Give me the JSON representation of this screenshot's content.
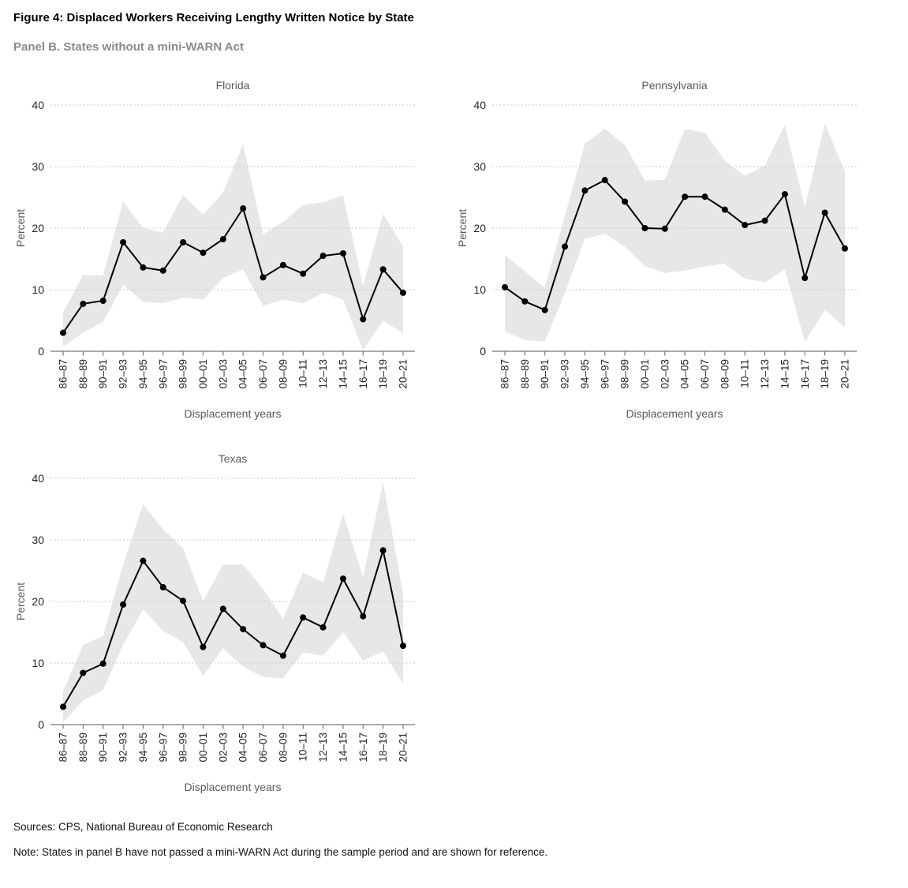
{
  "header": {
    "title": "Figure 4: Displaced Workers Receiving Lengthy Written Notice by State",
    "subtitle": "Panel B. States without a mini-WARN Act"
  },
  "footer": {
    "sources": "Sources: CPS, National Bureau of Economic Research",
    "note": "Note: States in panel B have not passed a mini-WARN Act during the sample period and are shown for reference."
  },
  "colors": {
    "line": "#000000",
    "band": "#e7e7e7",
    "grid": "#c9c9c9",
    "axis": "#777777",
    "chart_text": "#5a5a5a",
    "tick_text": "#262626"
  },
  "chart_data": [
    {
      "type": "line",
      "title": "Florida",
      "xlabel": "Displacement years",
      "ylabel": "Percent",
      "ylim": [
        0,
        40
      ],
      "yticks": [
        0,
        10,
        20,
        30,
        40
      ],
      "grid": true,
      "legend": "none",
      "categories": [
        "86–87",
        "88–89",
        "90–91",
        "92–93",
        "94–95",
        "96–97",
        "98–99",
        "00–01",
        "02–03",
        "04–05",
        "06–07",
        "08–09",
        "10–11",
        "12–13",
        "14–15",
        "16–17",
        "18–19",
        "20–21"
      ],
      "series": [
        {
          "name": "percent receiving lengthy notice",
          "role": "mean",
          "values": [
            3.0,
            7.7,
            8.2,
            17.7,
            13.6,
            13.1,
            17.7,
            16.0,
            18.2,
            23.2,
            12.0,
            14.0,
            12.6,
            15.5,
            15.9,
            5.2,
            13.3,
            9.5
          ]
        },
        {
          "name": "confidence band lower bound",
          "role": "lower",
          "values": [
            0.8,
            3.0,
            4.8,
            10.8,
            8.0,
            7.8,
            8.7,
            8.4,
            11.9,
            13.3,
            7.4,
            8.4,
            7.8,
            9.5,
            8.4,
            0.2,
            5.0,
            2.9
          ]
        },
        {
          "name": "confidence band upper bound",
          "role": "upper",
          "values": [
            6.3,
            12.4,
            12.3,
            24.4,
            20.0,
            19.3,
            25.4,
            22.2,
            25.8,
            33.6,
            19.0,
            21.0,
            23.8,
            24.2,
            25.3,
            10.6,
            22.3,
            17.0
          ]
        }
      ]
    },
    {
      "type": "line",
      "title": "Pennsylvania",
      "xlabel": "Displacement years",
      "ylabel": "Percent",
      "ylim": [
        0,
        40
      ],
      "yticks": [
        0,
        10,
        20,
        30,
        40
      ],
      "grid": true,
      "legend": "none",
      "categories": [
        "86–87",
        "88–89",
        "90–91",
        "92–93",
        "94–95",
        "96–97",
        "98–99",
        "00–01",
        "02–03",
        "04–05",
        "06–07",
        "08–09",
        "10–11",
        "12–13",
        "14–15",
        "16–17",
        "18–19",
        "20–21"
      ],
      "series": [
        {
          "name": "percent receiving lengthy notice",
          "role": "mean",
          "values": [
            10.4,
            8.1,
            6.7,
            17.0,
            26.1,
            27.8,
            24.3,
            20.0,
            19.9,
            25.1,
            25.1,
            23.0,
            20.5,
            21.2,
            25.5,
            11.9,
            22.5,
            16.7
          ]
        },
        {
          "name": "confidence band lower bound",
          "role": "lower",
          "values": [
            3.3,
            1.8,
            1.6,
            9.5,
            18.3,
            19.1,
            17.0,
            13.8,
            12.7,
            13.1,
            13.8,
            14.2,
            11.8,
            11.2,
            13.3,
            1.5,
            6.7,
            3.9
          ]
        },
        {
          "name": "confidence band upper bound",
          "role": "upper",
          "values": [
            15.6,
            13.0,
            10.3,
            22.0,
            33.8,
            36.1,
            33.5,
            27.7,
            27.9,
            36.1,
            35.5,
            30.9,
            28.5,
            30.2,
            36.7,
            23.4,
            37.0,
            29.2
          ]
        }
      ]
    },
    {
      "type": "line",
      "title": "Texas",
      "xlabel": "Displacement years",
      "ylabel": "Percent",
      "ylim": [
        0,
        40
      ],
      "yticks": [
        0,
        10,
        20,
        30,
        40
      ],
      "grid": true,
      "legend": "none",
      "categories": [
        "86–87",
        "88–89",
        "90–91",
        "92–93",
        "94–95",
        "96–97",
        "98–99",
        "00–01",
        "02–03",
        "04–05",
        "06–07",
        "08–09",
        "10–11",
        "12–13",
        "14–15",
        "16–17",
        "18–19",
        "20–21"
      ],
      "series": [
        {
          "name": "percent receiving lengthy notice",
          "role": "mean",
          "values": [
            2.9,
            8.4,
            9.9,
            19.5,
            26.6,
            22.3,
            20.1,
            12.6,
            18.8,
            15.5,
            12.9,
            11.2,
            17.4,
            15.8,
            23.7,
            17.6,
            28.3,
            12.8
          ]
        },
        {
          "name": "confidence band lower bound",
          "role": "lower",
          "values": [
            0.4,
            3.9,
            5.6,
            13.0,
            18.7,
            15.2,
            13.4,
            7.9,
            12.4,
            9.4,
            7.7,
            7.5,
            11.7,
            11.2,
            15.0,
            10.4,
            11.9,
            6.6
          ]
        },
        {
          "name": "confidence band upper bound",
          "role": "upper",
          "values": [
            5.4,
            12.9,
            14.4,
            26.0,
            35.8,
            31.7,
            28.6,
            20.0,
            26.0,
            26.0,
            22.0,
            17.2,
            24.7,
            23.1,
            34.2,
            24.0,
            39.4,
            21.2
          ]
        }
      ]
    }
  ]
}
